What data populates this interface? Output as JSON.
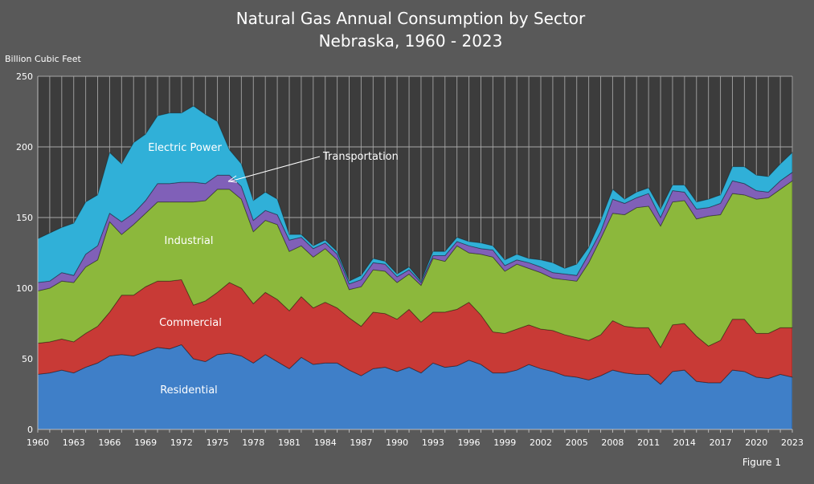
{
  "chart_data": {
    "type": "area",
    "stacked": true,
    "title": [
      "Natural Gas Annual Consumption by Sector",
      "Nebraska, 1960 - 2023"
    ],
    "ylabel": "Billion Cubic Feet",
    "xlabel": "",
    "ylim": [
      0,
      250
    ],
    "yticks": [
      0,
      50,
      100,
      150,
      200,
      250
    ],
    "xticks": [
      1960,
      1963,
      1966,
      1969,
      1972,
      1975,
      1978,
      1981,
      1984,
      1987,
      1990,
      1993,
      1996,
      1999,
      2002,
      2005,
      2008,
      2011,
      2014,
      2017,
      2020,
      2023
    ],
    "grid": true,
    "legend": "none (inline labels)",
    "annotation": "Figure 1",
    "x": [
      1960,
      1961,
      1962,
      1963,
      1964,
      1965,
      1966,
      1967,
      1968,
      1969,
      1970,
      1971,
      1972,
      1973,
      1974,
      1975,
      1976,
      1977,
      1978,
      1979,
      1980,
      1981,
      1982,
      1983,
      1984,
      1985,
      1986,
      1987,
      1988,
      1989,
      1990,
      1991,
      1992,
      1993,
      1994,
      1995,
      1996,
      1997,
      1998,
      1999,
      2000,
      2001,
      2002,
      2003,
      2004,
      2005,
      2006,
      2007,
      2008,
      2009,
      2010,
      2011,
      2012,
      2013,
      2014,
      2015,
      2016,
      2017,
      2018,
      2019,
      2020,
      2021,
      2022,
      2023
    ],
    "series": [
      {
        "name": "Residential",
        "color": "#3f7fc8",
        "values": [
          39,
          40,
          42,
          40,
          44,
          47,
          52,
          53,
          52,
          55,
          58,
          57,
          60,
          50,
          48,
          53,
          54,
          52,
          47,
          53,
          48,
          43,
          51,
          46,
          47,
          47,
          42,
          38,
          43,
          44,
          41,
          44,
          40,
          47,
          44,
          45,
          49,
          46,
          40,
          40,
          42,
          46,
          43,
          41,
          38,
          37,
          35,
          38,
          42,
          40,
          39,
          39,
          32,
          41,
          42,
          34,
          33,
          33,
          42,
          41,
          37,
          36,
          39,
          37
        ]
      },
      {
        "name": "Commercial",
        "color": "#c83a36",
        "values": [
          22,
          22,
          22,
          22,
          24,
          26,
          31,
          42,
          43,
          46,
          47,
          48,
          46,
          38,
          43,
          44,
          50,
          48,
          42,
          44,
          44,
          41,
          43,
          40,
          43,
          39,
          37,
          35,
          40,
          38,
          37,
          41,
          36,
          36,
          39,
          40,
          41,
          35,
          29,
          28,
          29,
          28,
          28,
          29,
          29,
          28,
          28,
          29,
          35,
          33,
          33,
          33,
          26,
          33,
          33,
          32,
          26,
          30,
          36,
          37,
          31,
          32,
          33,
          35
        ]
      },
      {
        "name": "Industrial",
        "color": "#8cb83c",
        "values": [
          37,
          38,
          41,
          42,
          47,
          47,
          64,
          43,
          50,
          52,
          56,
          56,
          55,
          73,
          71,
          73,
          66,
          63,
          51,
          51,
          53,
          42,
          36,
          36,
          38,
          34,
          20,
          28,
          30,
          30,
          26,
          25,
          26,
          38,
          36,
          45,
          35,
          43,
          53,
          44,
          46,
          40,
          40,
          37,
          39,
          40,
          55,
          68,
          76,
          79,
          85,
          86,
          86,
          87,
          87,
          83,
          92,
          89,
          89,
          88,
          95,
          96,
          98,
          104
        ]
      },
      {
        "name": "Transportation",
        "color": "#8060b8",
        "values": [
          6,
          5,
          6,
          5,
          9,
          10,
          6,
          9,
          8,
          9,
          13,
          13,
          14,
          14,
          12,
          10,
          10,
          9,
          8,
          7,
          7,
          8,
          6,
          6,
          4,
          4,
          4,
          5,
          5,
          5,
          4,
          3,
          2,
          2,
          4,
          3,
          5,
          4,
          5,
          4,
          3,
          4,
          4,
          4,
          4,
          4,
          6,
          5,
          10,
          8,
          7,
          9,
          6,
          8,
          6,
          7,
          6,
          8,
          9,
          8,
          6,
          4,
          6,
          6
        ]
      },
      {
        "name": "Electric Power",
        "color": "#30b0d8",
        "values": [
          31,
          34,
          32,
          37,
          37,
          36,
          43,
          41,
          50,
          47,
          48,
          50,
          49,
          54,
          49,
          38,
          18,
          16,
          14,
          13,
          11,
          4,
          2,
          2,
          2,
          2,
          2,
          3,
          3,
          2,
          2,
          2,
          1,
          3,
          3,
          3,
          3,
          4,
          3,
          4,
          4,
          3,
          5,
          7,
          4,
          8,
          5,
          8,
          7,
          3,
          4,
          4,
          6,
          4,
          5,
          5,
          6,
          6,
          10,
          12,
          11,
          11,
          12,
          14
        ]
      }
    ]
  }
}
